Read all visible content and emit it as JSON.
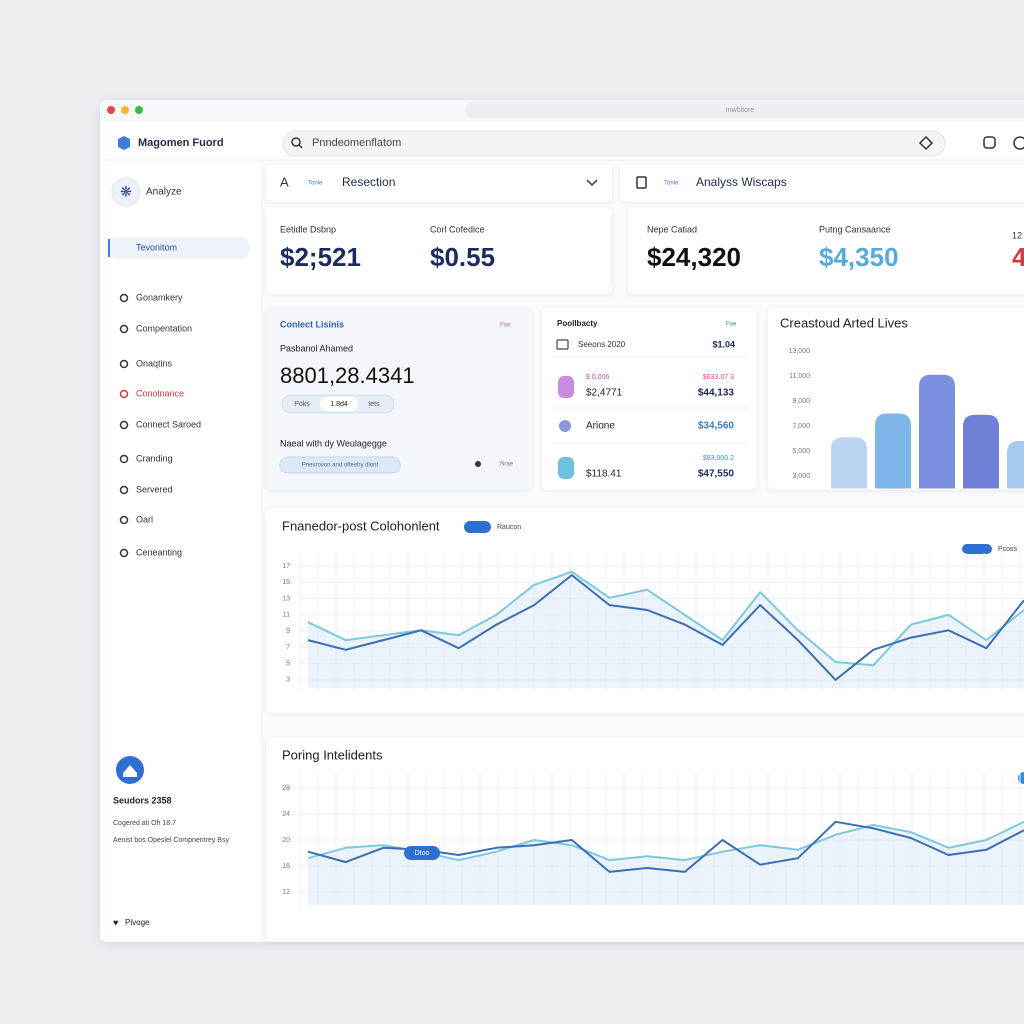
{
  "window": {
    "address": "Inwbltore"
  },
  "header": {
    "brand": "Magomen Fuord",
    "search": "Pnndeomenflatom"
  },
  "sidebar": {
    "top": "Analyze",
    "selected": "Tevonitom",
    "items": [
      "Gonamkery",
      "Compentation",
      "Onaqtins",
      "Conolnance",
      "Connect Saroed",
      "Cranding",
      "Servered",
      "Oarl",
      "Ceneanting"
    ],
    "footer": {
      "title": "Seudors 2358",
      "line1": "Cogered ati Oh 18.7",
      "line2": "Aenist bos Opeslel Compnentrey Bsy",
      "link": "Pivoge"
    }
  },
  "dropdowns": [
    {
      "tag": "Tonle",
      "label": "Resection"
    },
    {
      "tag": "Tonle",
      "label": "Analyss Wiscaps"
    }
  ],
  "kpis": [
    {
      "label": "Eetidle Dsbnp",
      "value": "$2;521"
    },
    {
      "label": "Corl Cofedice",
      "value": "$0.55"
    },
    {
      "label": "Nepe Catiad",
      "value": "$24,320"
    },
    {
      "label": "Putng Cansaance",
      "value": "$4,350"
    },
    {
      "label": "12",
      "value": "4"
    }
  ],
  "contact_card": {
    "title": "Conlect Lisinis",
    "tag": "Foe",
    "name": "Pasbanol Ahamed",
    "value": "8801,28.4341",
    "pill": [
      "Poks",
      "1.8d4",
      "tets"
    ],
    "subtitle": "Naeal with dy Weulagegge",
    "chip": "Pnesrovon and ofteohy dlont",
    "action": "Nrae"
  },
  "list_card": {
    "title": "Poollbacty",
    "tag": "Foe",
    "rows": [
      {
        "left": "Seeons 2020",
        "right": "$1.04"
      },
      {
        "left_top": "$ 0.006",
        "left": "$2,4771",
        "right_top": "$633.07 3",
        "right": "$44,133"
      },
      {
        "left": "Arione",
        "right": "$34,560"
      },
      {
        "left": "$118.41",
        "right_top": "$83,000.2",
        "right": "$47,550"
      }
    ]
  },
  "chart_data": [
    {
      "type": "bar",
      "title": "Creastoud Arted Lives",
      "categories": [
        null,
        null,
        null,
        null,
        null
      ],
      "values": [
        6100,
        8000,
        11100,
        7900,
        5800
      ],
      "colors": [
        "#bcd5f1",
        "#7fb6e9",
        "#7a8fe0",
        "#6f80d6",
        "#a6c9ed"
      ],
      "ylim": [
        2000,
        13800
      ],
      "yticks": [
        {
          "value": 3000,
          "label": "3,000"
        },
        {
          "value": 5000,
          "label": "5,000"
        },
        {
          "value": 7000,
          "label": "7,000"
        },
        {
          "value": 9000,
          "label": "9,000"
        },
        {
          "value": 11000,
          "label": "11,000"
        },
        {
          "value": 13000,
          "label": "13,000"
        }
      ],
      "grid": false
    },
    {
      "type": "line",
      "title": "Fnanedor-post Colohonlent",
      "annotations": [
        "Raucon",
        "Pcoss"
      ],
      "categories": [
        null,
        null,
        null,
        null,
        null,
        null,
        null,
        null,
        null,
        null,
        null,
        null,
        null,
        null,
        null,
        null,
        null,
        null,
        null,
        null
      ],
      "series": [
        {
          "color": "#7cc8dc",
          "values": [
            10.1,
            7.9,
            8.5,
            9.1,
            8.5,
            11.0,
            14.7,
            16.3,
            13.1,
            14.1,
            11.0,
            7.9,
            13.8,
            9.1,
            5.2,
            4.8,
            9.8,
            11.0,
            7.9,
            11.6
          ]
        },
        {
          "color": "#3d6db3",
          "values": [
            7.9,
            6.7,
            7.9,
            9.1,
            6.9,
            9.8,
            12.2,
            15.9,
            12.2,
            11.6,
            9.8,
            7.3,
            12.2,
            7.9,
            3.0,
            6.7,
            8.2,
            9.1,
            6.9,
            12.8
          ]
        }
      ],
      "ylim": [
        2,
        18
      ],
      "yticks": [
        3,
        5,
        7,
        9,
        11,
        13,
        15,
        17
      ],
      "grid": true
    },
    {
      "type": "line",
      "title": "Poring Intelidents",
      "annotations": [
        "Dtoo"
      ],
      "categories": [
        null,
        null,
        null,
        null,
        null,
        null,
        null,
        null,
        null,
        null,
        null,
        null,
        null,
        null,
        null,
        null,
        null,
        null,
        null,
        null
      ],
      "series": [
        {
          "color": "#7cc8dc",
          "values": [
            17.2,
            18.8,
            19.2,
            18.2,
            16.9,
            18.2,
            20.0,
            19.2,
            16.9,
            17.5,
            16.9,
            18.2,
            19.2,
            18.5,
            20.8,
            22.3,
            21.2,
            18.8,
            20.0,
            22.8
          ]
        },
        {
          "color": "#3d6db3",
          "values": [
            18.2,
            16.6,
            18.8,
            18.5,
            17.7,
            18.8,
            19.2,
            20.0,
            15.1,
            15.7,
            15.1,
            20.0,
            16.2,
            17.2,
            22.8,
            21.8,
            20.3,
            17.7,
            18.5,
            21.5
          ]
        }
      ],
      "ylim": [
        10,
        30
      ],
      "yticks": [
        12,
        16,
        20,
        24,
        28
      ],
      "grid": true
    }
  ]
}
